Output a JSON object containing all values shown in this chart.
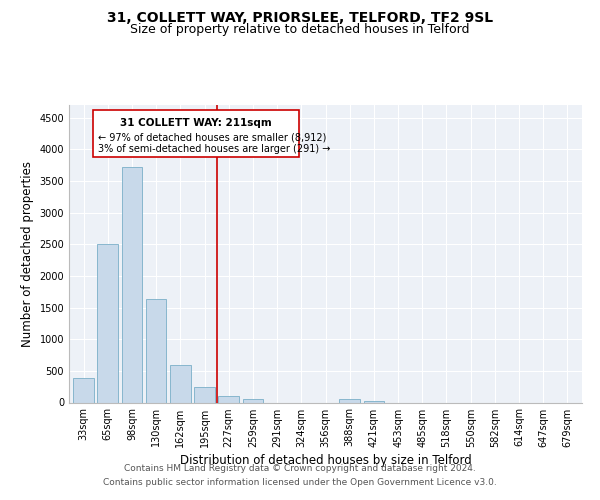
{
  "title": "31, COLLETT WAY, PRIORSLEE, TELFORD, TF2 9SL",
  "subtitle": "Size of property relative to detached houses in Telford",
  "xlabel": "Distribution of detached houses by size in Telford",
  "ylabel": "Number of detached properties",
  "categories": [
    "33sqm",
    "65sqm",
    "98sqm",
    "130sqm",
    "162sqm",
    "195sqm",
    "227sqm",
    "259sqm",
    "291sqm",
    "324sqm",
    "356sqm",
    "388sqm",
    "421sqm",
    "453sqm",
    "485sqm",
    "518sqm",
    "550sqm",
    "582sqm",
    "614sqm",
    "647sqm",
    "679sqm"
  ],
  "values": [
    380,
    2500,
    3720,
    1640,
    600,
    240,
    100,
    55,
    0,
    0,
    0,
    50,
    30,
    0,
    0,
    0,
    0,
    0,
    0,
    0,
    0
  ],
  "bar_color": "#c8d9ea",
  "bar_edge_color": "#7aafc8",
  "property_line_color": "#cc0000",
  "ylim": [
    0,
    4700
  ],
  "yticks": [
    0,
    500,
    1000,
    1500,
    2000,
    2500,
    3000,
    3500,
    4000,
    4500
  ],
  "footer_line1": "Contains HM Land Registry data © Crown copyright and database right 2024.",
  "footer_line2": "Contains public sector information licensed under the Open Government Licence v3.0.",
  "bg_color": "#ffffff",
  "plot_bg_color": "#edf1f7",
  "title_fontsize": 10,
  "subtitle_fontsize": 9,
  "axis_label_fontsize": 8.5,
  "tick_fontsize": 7,
  "footer_fontsize": 6.5,
  "ann_title": "31 COLLETT WAY: 211sqm",
  "ann_line1": "← 97% of detached houses are smaller (8,912)",
  "ann_line2": "3% of semi-detached houses are larger (291) →"
}
